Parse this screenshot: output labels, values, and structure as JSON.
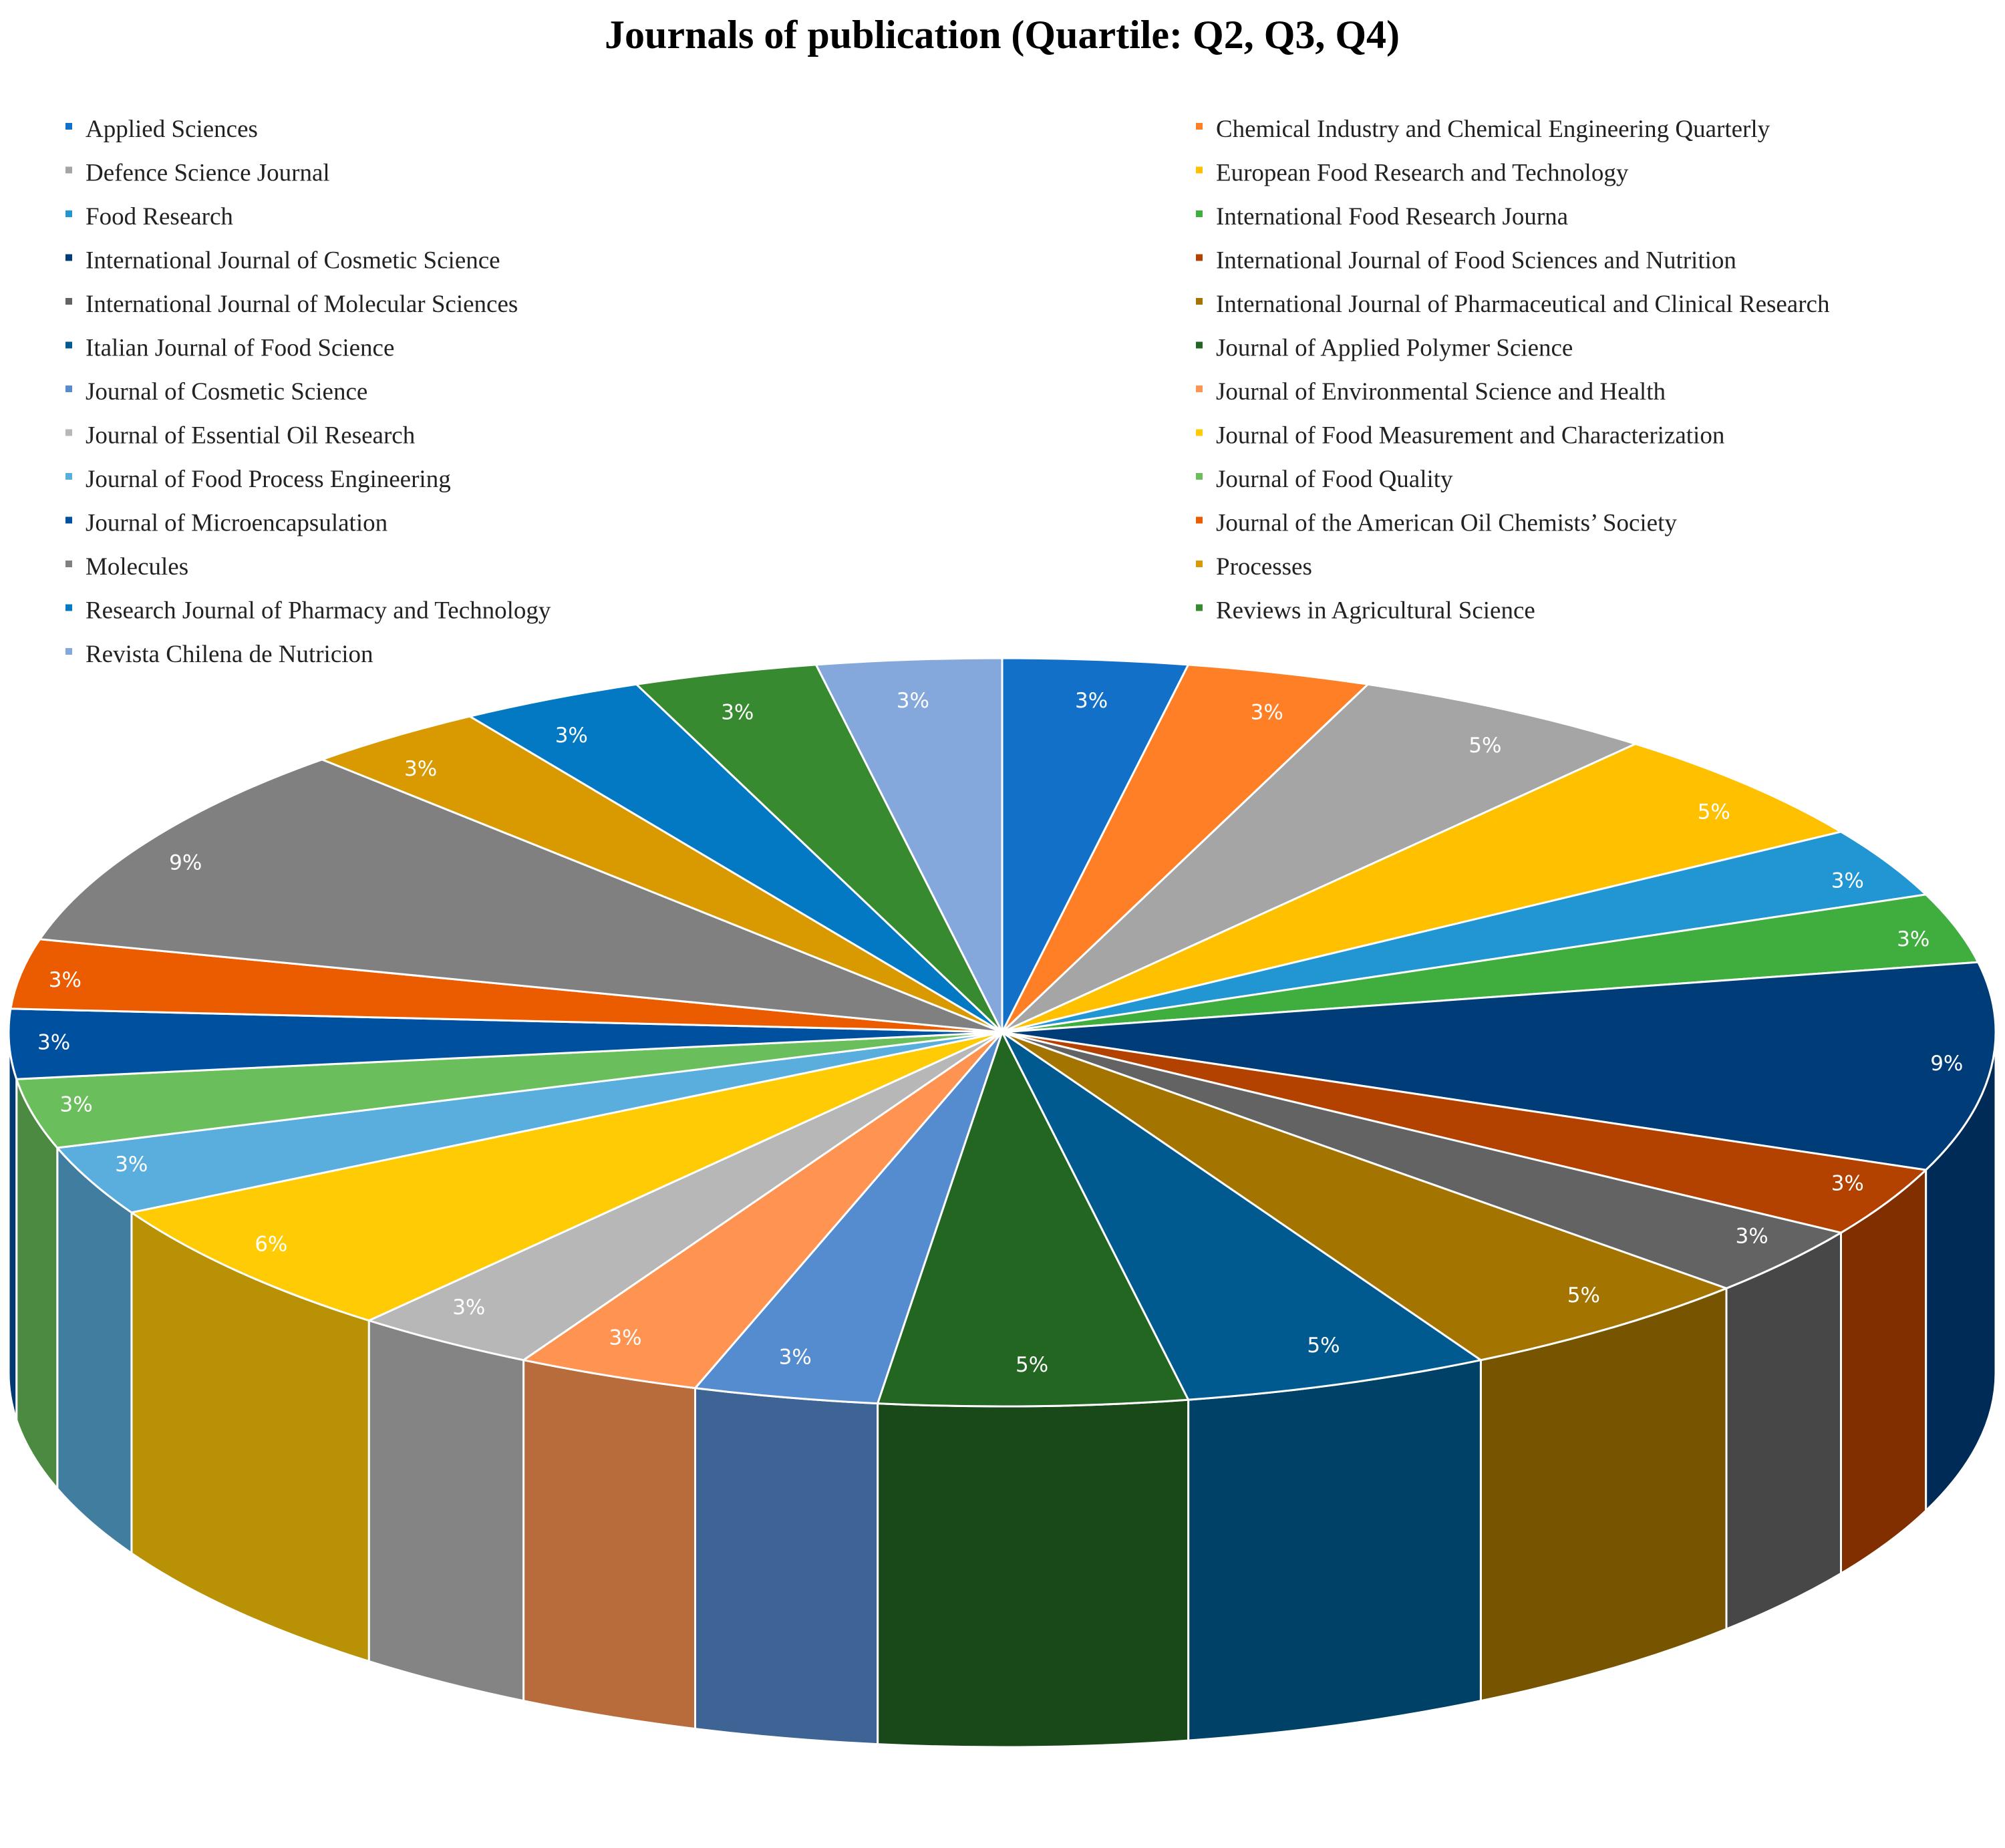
{
  "chart_data": {
    "type": "pie",
    "title": "Journals of publication (Quartile: Q2, Q3, Q4)",
    "legend_position": "top",
    "style": "3d",
    "slices": [
      {
        "label": "Applied Sciences",
        "value": 3,
        "display": "3%",
        "color": "#1270C9"
      },
      {
        "label": "Chemical Industry and Chemical Engineering Quarterly",
        "value": 3,
        "display": "3%",
        "color": "#FF7F27"
      },
      {
        "label": "Defence Science Journal",
        "value": 5,
        "display": "5%",
        "color": "#A5A5A5"
      },
      {
        "label": "European Food Research and Technology",
        "value": 5,
        "display": "5%",
        "color": "#FFC000"
      },
      {
        "label": "Food Research",
        "value": 3,
        "display": "3%",
        "color": "#2196D3"
      },
      {
        "label": "International Food Research Journa",
        "value": 3,
        "display": "3%",
        "color": "#3FAE3F"
      },
      {
        "label": "International Journal of Cosmetic Science",
        "value": 9,
        "display": "9%",
        "color": "#003C78"
      },
      {
        "label": "International Journal of Food Sciences and Nutrition",
        "value": 3,
        "display": "3%",
        "color": "#B34100"
      },
      {
        "label": "International Journal of Molecular Sciences",
        "value": 3,
        "display": "3%",
        "color": "#636363"
      },
      {
        "label": "International Journal of Pharmaceutical and Clinical Research",
        "value": 5,
        "display": "5%",
        "color": "#A47400"
      },
      {
        "label": "Italian Journal of Food Science",
        "value": 5,
        "display": "5%",
        "color": "#005A90"
      },
      {
        "label": "Journal of Applied Polymer Science",
        "value": 5,
        "display": "5%",
        "color": "#236622"
      },
      {
        "label": "Journal of Cosmetic Science",
        "value": 3,
        "display": "3%",
        "color": "#558BCF"
      },
      {
        "label": "Journal of Environmental Science and Health",
        "value": 3,
        "display": "3%",
        "color": "#FF9452"
      },
      {
        "label": "Journal of Essential Oil Research",
        "value": 3,
        "display": "3%",
        "color": "#B7B7B7"
      },
      {
        "label": "Journal of Food Measurement and Characterization",
        "value": 6,
        "display": "6%",
        "color": "#FFCB05"
      },
      {
        "label": "Journal of Food Process Engineering",
        "value": 3,
        "display": "3%",
        "color": "#5AAEDD"
      },
      {
        "label": "Journal of Food Quality",
        "value": 3,
        "display": "3%",
        "color": "#6ABF5C"
      },
      {
        "label": "Journal of Microencapsulation",
        "value": 3,
        "display": "3%",
        "color": "#0050A0"
      },
      {
        "label": "Journal of the American Oil Chemists’ Society",
        "value": 3,
        "display": "3%",
        "color": "#EB5C00"
      },
      {
        "label": "Molecules",
        "value": 9,
        "display": "9%",
        "color": "#808080"
      },
      {
        "label": "Processes",
        "value": 3,
        "display": "3%",
        "color": "#D89A00"
      },
      {
        "label": "Research Journal of Pharmacy and Technology",
        "value": 3,
        "display": "3%",
        "color": "#0479C3"
      },
      {
        "label": "Reviews in Agricultural Science",
        "value": 3,
        "display": "3%",
        "color": "#378A2F"
      },
      {
        "label": "Revista Chilena de Nutricion",
        "value": 3,
        "display": "3%",
        "color": "#84A8DC"
      }
    ]
  }
}
